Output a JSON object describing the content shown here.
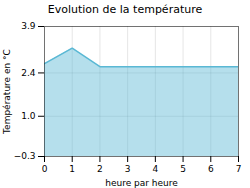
{
  "chart_data": {
    "type": "area",
    "title": "Evolution de la température",
    "xlabel": "heure par heure",
    "ylabel": "Température en °C",
    "x": [
      0,
      1,
      2,
      3,
      4,
      5,
      6,
      7
    ],
    "values": [
      2.7,
      3.2,
      2.6,
      2.6,
      2.6,
      2.6,
      2.6,
      2.6
    ],
    "color": "#5ab8d4",
    "xlim": [
      0,
      7
    ],
    "ylim": [
      -0.3,
      3.9
    ],
    "xticks": [
      0,
      1,
      2,
      3,
      4,
      5,
      6,
      7
    ],
    "yticks": [
      {
        "value": -0.3,
        "label": "−0.3"
      },
      {
        "value": 1.0,
        "label": "1.0"
      },
      2.4,
      3.9
    ],
    "grid": true
  }
}
